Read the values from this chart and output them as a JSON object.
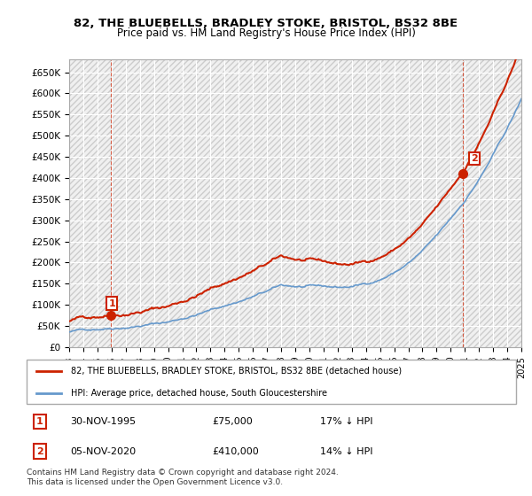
{
  "title1": "82, THE BLUEBELLS, BRADLEY STOKE, BRISTOL, BS32 8BE",
  "title2": "Price paid vs. HM Land Registry's House Price Index (HPI)",
  "ylabel": "",
  "xlabel": "",
  "ylim": [
    0,
    680000
  ],
  "yticks": [
    0,
    50000,
    100000,
    150000,
    200000,
    250000,
    300000,
    350000,
    400000,
    450000,
    500000,
    550000,
    600000,
    650000
  ],
  "ytick_labels": [
    "£0",
    "£50K",
    "£100K",
    "£150K",
    "£200K",
    "£250K",
    "£300K",
    "£350K",
    "£400K",
    "£450K",
    "£500K",
    "£550K",
    "£600K",
    "£650K"
  ],
  "hpi_color": "#6699cc",
  "sale_color": "#cc2200",
  "sale1_x": 1995.92,
  "sale1_y": 75000,
  "sale1_label": "1",
  "sale2_x": 2020.85,
  "sale2_y": 410000,
  "sale2_label": "2",
  "background_color": "#f0f0f0",
  "grid_color": "#ffffff",
  "legend_entry1": "82, THE BLUEBELLS, BRADLEY STOKE, BRISTOL, BS32 8BE (detached house)",
  "legend_entry2": "HPI: Average price, detached house, South Gloucestershire",
  "table_row1": [
    "1",
    "30-NOV-1995",
    "£75,000",
    "17% ↓ HPI"
  ],
  "table_row2": [
    "2",
    "05-NOV-2020",
    "£410,000",
    "14% ↓ HPI"
  ],
  "footnote": "Contains HM Land Registry data © Crown copyright and database right 2024.\nThis data is licensed under the Open Government Licence v3.0.",
  "xmin": 1993,
  "xmax": 2025
}
